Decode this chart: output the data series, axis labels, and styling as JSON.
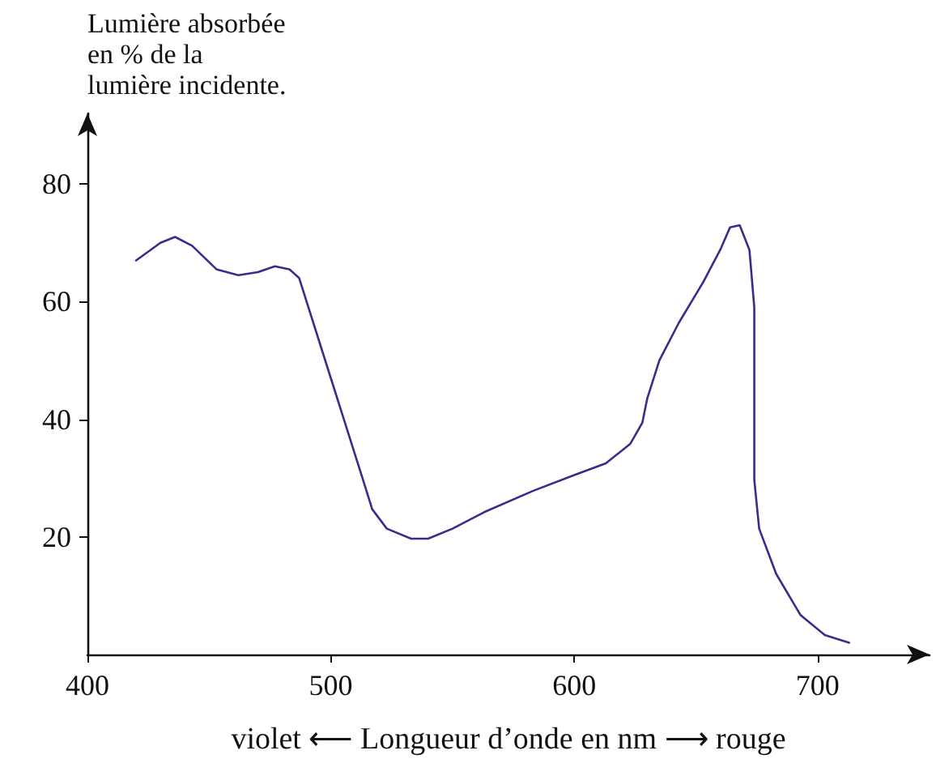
{
  "chart_data": {
    "type": "line",
    "xlabel": "violet ⟵ Longueur d’onde en nm ⟶ rouge",
    "ylabel": "Lumière absorbée\nen % de la\nlumière incidente.",
    "x": [
      420,
      430,
      436,
      443,
      453,
      462,
      470,
      477,
      483,
      487,
      500,
      513,
      517,
      523,
      533,
      540,
      550,
      563,
      583,
      600,
      613,
      623,
      628,
      630,
      635,
      643,
      653,
      660,
      664,
      668,
      672,
      674,
      674,
      676,
      683,
      693,
      703,
      713
    ],
    "series": [
      {
        "color": "#3b2c8c",
        "values": [
          67,
          70,
          71,
          69.5,
          65.5,
          64.5,
          65,
          66,
          65.5,
          64,
          47,
          30,
          24.7,
          21.4,
          19.7,
          19.7,
          21.4,
          24.2,
          27.8,
          30.5,
          32.5,
          35.8,
          39.4,
          43.5,
          50,
          56.4,
          63.3,
          68.8,
          72.6,
          73,
          68.8,
          59,
          29.7,
          21.4,
          13.7,
          6.7,
          3.3,
          2
        ]
      }
    ],
    "xlim": [
      400,
      746
    ],
    "xticks": [
      400,
      500,
      600,
      700
    ],
    "ylim": [
      0,
      92
    ],
    "yticks": [
      20,
      40,
      60,
      80
    ],
    "marker": "none",
    "line_style": "solid"
  }
}
